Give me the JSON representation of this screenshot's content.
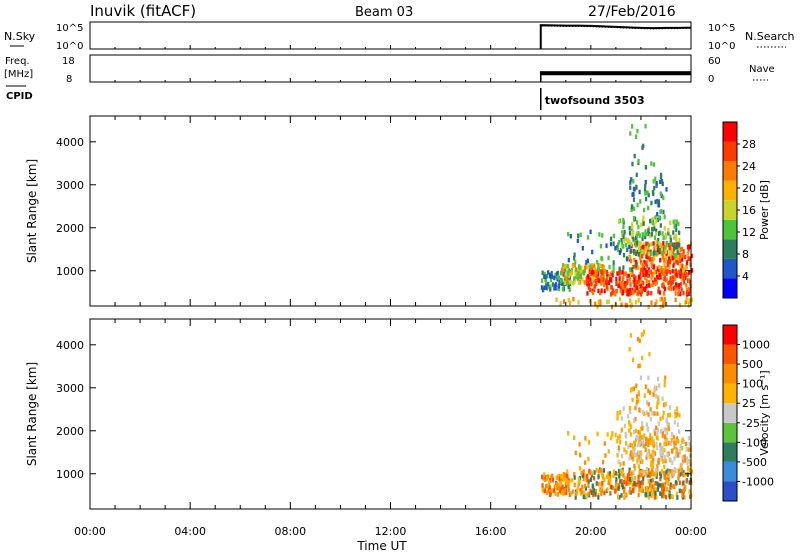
{
  "header": {
    "title": "Inuvik (fitACF)",
    "beam": "Beam 03",
    "date": "27/Feb/2016"
  },
  "chart_data": [
    {
      "type": "line",
      "panel": "noise",
      "left_label": "N.Sky",
      "right_label": "N.Search",
      "left_ticks": [
        "10^5",
        "10^0"
      ],
      "right_ticks": [
        "10^5",
        "10^0"
      ],
      "x": [
        18.0,
        18.5,
        19.0,
        19.5,
        20.0,
        20.5,
        21.0,
        21.5,
        22.0,
        22.5,
        23.0,
        23.5,
        24.0
      ],
      "sky_level_log": [
        4.85,
        4.8,
        4.75,
        4.75,
        4.7,
        4.6,
        4.5,
        4.4,
        4.3,
        4.25,
        4.3,
        4.3,
        4.35
      ],
      "search_level_log": [
        4.7,
        4.65,
        4.6,
        4.6,
        4.55,
        4.45,
        4.35,
        4.25,
        4.15,
        4.1,
        4.15,
        4.15,
        4.2
      ],
      "ylim": [
        0,
        5.5
      ]
    },
    {
      "type": "line",
      "panel": "frequency",
      "left_label": "Freq.",
      "left_unit": "[MHz]",
      "right_label": "Nave",
      "left_ticks": [
        "18",
        "8"
      ],
      "right_ticks": [
        "60",
        "0"
      ],
      "freq_ylim": [
        8,
        18
      ],
      "nave_ylim": [
        0,
        60
      ],
      "x": [
        18.0,
        24.0
      ],
      "freq_band": [
        10.5,
        12.0
      ]
    },
    {
      "type": "table",
      "panel": "cpid",
      "label": "CPID",
      "programs": [
        {
          "start": 18.0,
          "name": "twofsound 3503"
        }
      ]
    },
    {
      "type": "heatmap",
      "panel": "power",
      "ylabel": "Slant Range [km]",
      "yticks": [
        1000,
        2000,
        3000,
        4000
      ],
      "ylim": [
        180,
        4600
      ],
      "colorbar_label": "Power [dB]",
      "colorbar_ticks": [
        "28",
        "24",
        "20",
        "16",
        "12",
        "8",
        "4"
      ],
      "colors": [
        "#0000ff",
        "#1f56c8",
        "#2e7d5c",
        "#4ec43a",
        "#c8d42a",
        "#ffb300",
        "#ff7a00",
        "#ff3a00",
        "#ff0000"
      ],
      "scatter": [
        {
          "t": [
            18.0,
            19.2
          ],
          "r": [
            600,
            1050
          ],
          "n": 80,
          "c": [
            1,
            2,
            3
          ]
        },
        {
          "t": [
            18.8,
            20.5
          ],
          "r": [
            750,
            1200
          ],
          "n": 120,
          "c": [
            3,
            4,
            5,
            6
          ]
        },
        {
          "t": [
            19.8,
            24.0
          ],
          "r": [
            500,
            1050
          ],
          "n": 300,
          "c": [
            6,
            7,
            8
          ]
        },
        {
          "t": [
            21.5,
            24.0
          ],
          "r": [
            1000,
            1700
          ],
          "n": 200,
          "c": [
            5,
            6,
            7,
            8
          ]
        },
        {
          "t": [
            21.0,
            23.5
          ],
          "r": [
            1400,
            2300
          ],
          "n": 160,
          "c": [
            3,
            4,
            2
          ]
        },
        {
          "t": [
            21.5,
            23.0
          ],
          "r": [
            2300,
            3300
          ],
          "n": 60,
          "c": [
            2,
            1,
            3
          ]
        },
        {
          "t": [
            19.0,
            22.0
          ],
          "r": [
            1000,
            2000
          ],
          "n": 50,
          "c": [
            1,
            2,
            3
          ]
        },
        {
          "t": [
            21.5,
            22.5
          ],
          "r": [
            3400,
            4500
          ],
          "n": 15,
          "c": [
            3,
            2
          ]
        },
        {
          "t": [
            18.5,
            24.0
          ],
          "r": [
            200,
            400
          ],
          "n": 50,
          "c": [
            4,
            5,
            6
          ]
        }
      ]
    },
    {
      "type": "heatmap",
      "panel": "velocity",
      "ylabel": "Slant Range [km]",
      "yticks": [
        1000,
        2000,
        3000,
        4000
      ],
      "ylim": [
        180,
        4600
      ],
      "xticks": [
        "00:00",
        "04:00",
        "08:00",
        "12:00",
        "16:00",
        "20:00",
        "00:00"
      ],
      "xlabel": "Time UT",
      "colorbar_label": "Velocity [m s⁻¹]",
      "colorbar_ticks": [
        "1000",
        "500",
        "100",
        "25",
        "-25",
        "-100",
        "-500",
        "-1000"
      ],
      "colors": [
        "#2a4fc8",
        "#3a8ad8",
        "#2e7d5c",
        "#5cc43a",
        "#c8c8c8",
        "#ffb300",
        "#ff8c00",
        "#ff5500",
        "#ff0000"
      ],
      "scatter": [
        {
          "t": [
            18.0,
            19.2
          ],
          "r": [
            550,
            1050
          ],
          "n": 90,
          "c": [
            6,
            7,
            5
          ]
        },
        {
          "t": [
            19.2,
            24.0
          ],
          "r": [
            500,
            1150
          ],
          "n": 320,
          "c": [
            6,
            7,
            5,
            2
          ]
        },
        {
          "t": [
            21.5,
            24.0
          ],
          "r": [
            1000,
            1900
          ],
          "n": 150,
          "c": [
            5,
            6,
            4
          ]
        },
        {
          "t": [
            21.0,
            23.5
          ],
          "r": [
            1300,
            2600
          ],
          "n": 160,
          "c": [
            4,
            5,
            6,
            4
          ]
        },
        {
          "t": [
            21.5,
            23.0
          ],
          "r": [
            2500,
            3300
          ],
          "n": 40,
          "c": [
            5,
            6,
            4
          ]
        },
        {
          "t": [
            19.0,
            22.0
          ],
          "r": [
            900,
            2000
          ],
          "n": 40,
          "c": [
            5,
            6
          ]
        },
        {
          "t": [
            21.5,
            22.3
          ],
          "r": [
            3400,
            4400
          ],
          "n": 12,
          "c": [
            5,
            6
          ]
        }
      ]
    }
  ]
}
